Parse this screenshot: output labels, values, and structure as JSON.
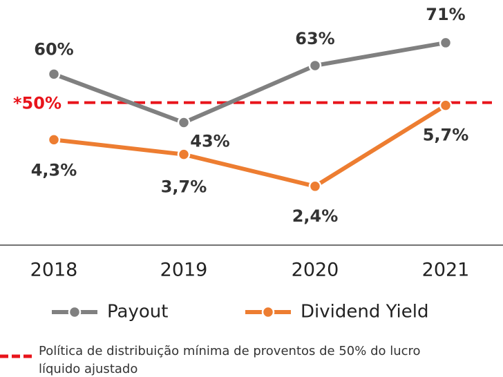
{
  "chart_data": {
    "type": "line",
    "categories": [
      "2018",
      "2019",
      "2020",
      "2021"
    ],
    "series": [
      {
        "name": "Payout",
        "color": "#808080",
        "values": [
          60,
          43,
          63,
          71
        ],
        "value_labels": [
          "60%",
          "43%",
          "63%",
          "71%"
        ]
      },
      {
        "name": "Dividend Yield",
        "color": "#ed7d31",
        "values": [
          4.3,
          3.7,
          2.4,
          5.7
        ],
        "value_labels": [
          "4,3%",
          "3,7%",
          "2,4%",
          "5,7%"
        ],
        "axis": "y2"
      }
    ],
    "ylim": [
      0,
      86
    ],
    "y2lim": [
      0,
      10
    ],
    "reference_line": {
      "value": 50,
      "label": "*50%",
      "color": "#e8141b"
    },
    "footnote": [
      "Política de distribuição mínima de proventos de 50% do lucro",
      "líquido ajustado"
    ]
  }
}
